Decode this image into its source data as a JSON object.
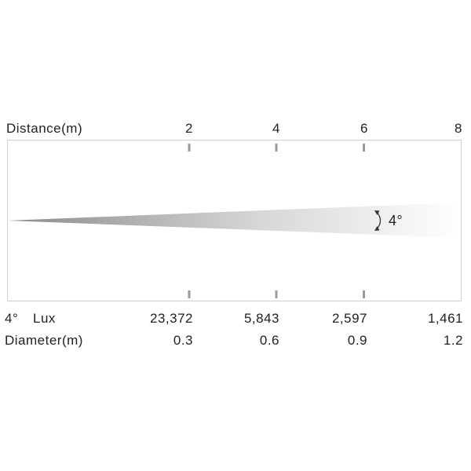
{
  "distance": {
    "label": "Distance(m)",
    "ticks": [
      "2",
      "4",
      "6",
      "8"
    ]
  },
  "beam": {
    "angle_label": "4°"
  },
  "lux_row": {
    "angle": "4°",
    "label": "Lux",
    "values": [
      "23,372",
      "5,843",
      "2,597",
      "1,461"
    ]
  },
  "diameter_row": {
    "label": "Diameter(m)",
    "values": [
      "0.3",
      "0.6",
      "0.9",
      "1.2"
    ]
  },
  "colors": {
    "frame": "#cfcfcf",
    "tick": "#9a9a9a",
    "beam_start": "#8a8a8a",
    "beam_end": "#ffffff",
    "text": "#222222"
  }
}
